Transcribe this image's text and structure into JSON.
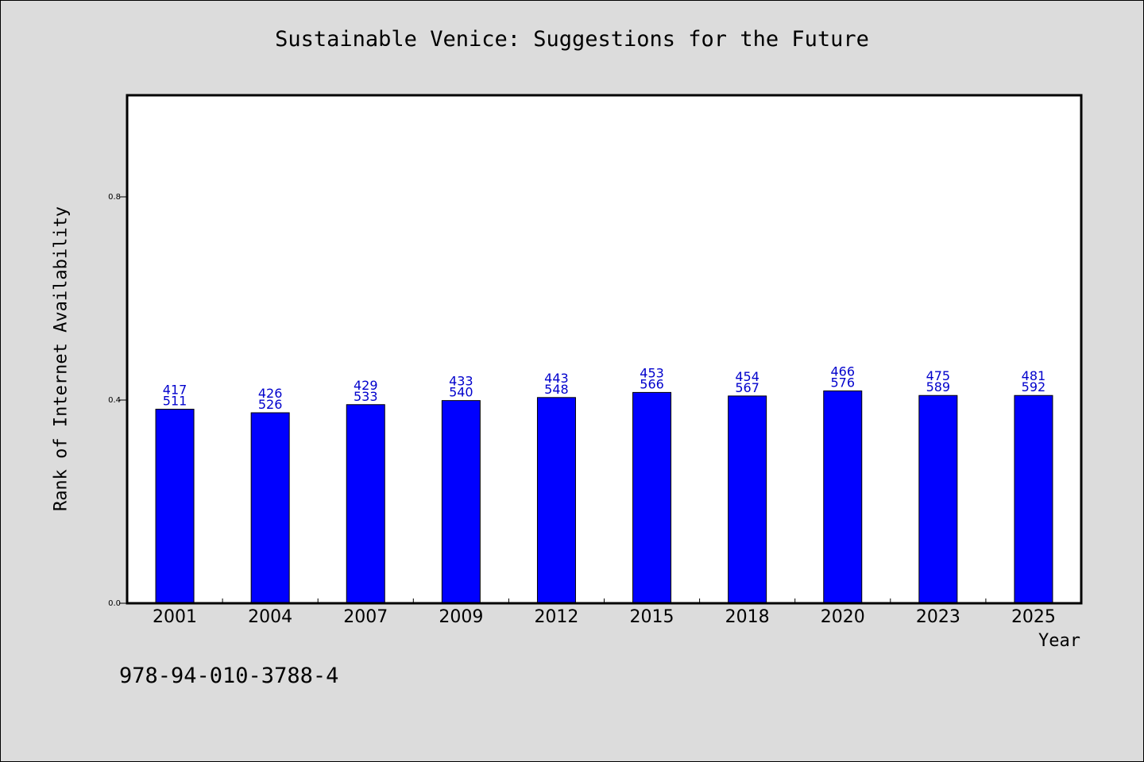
{
  "chart_data": {
    "type": "bar",
    "title": "Sustainable Venice: Suggestions for the Future",
    "xlabel": "Year",
    "ylabel": "Rank of Internet Availability",
    "categories": [
      "2001",
      "2004",
      "2007",
      "2009",
      "2012",
      "2015",
      "2018",
      "2020",
      "2023",
      "2025"
    ],
    "values": [
      0.382,
      0.375,
      0.391,
      0.399,
      0.405,
      0.415,
      0.408,
      0.418,
      0.409,
      0.409
    ],
    "labels_top": [
      "417",
      "426",
      "429",
      "433",
      "443",
      "453",
      "454",
      "466",
      "475",
      "481"
    ],
    "labels_bottom": [
      "511",
      "526",
      "533",
      "540",
      "548",
      "566",
      "567",
      "576",
      "589",
      "592"
    ],
    "ylim": [
      0,
      1.0
    ],
    "yticks": [
      0.0,
      0.4,
      0.8
    ],
    "ytick_labels": [
      "0.0",
      "0.4",
      "0.8"
    ],
    "bar_color": "#0000ff",
    "label_color": "#0000cc",
    "grid": false
  },
  "footnote": "978-94-010-3788-4"
}
